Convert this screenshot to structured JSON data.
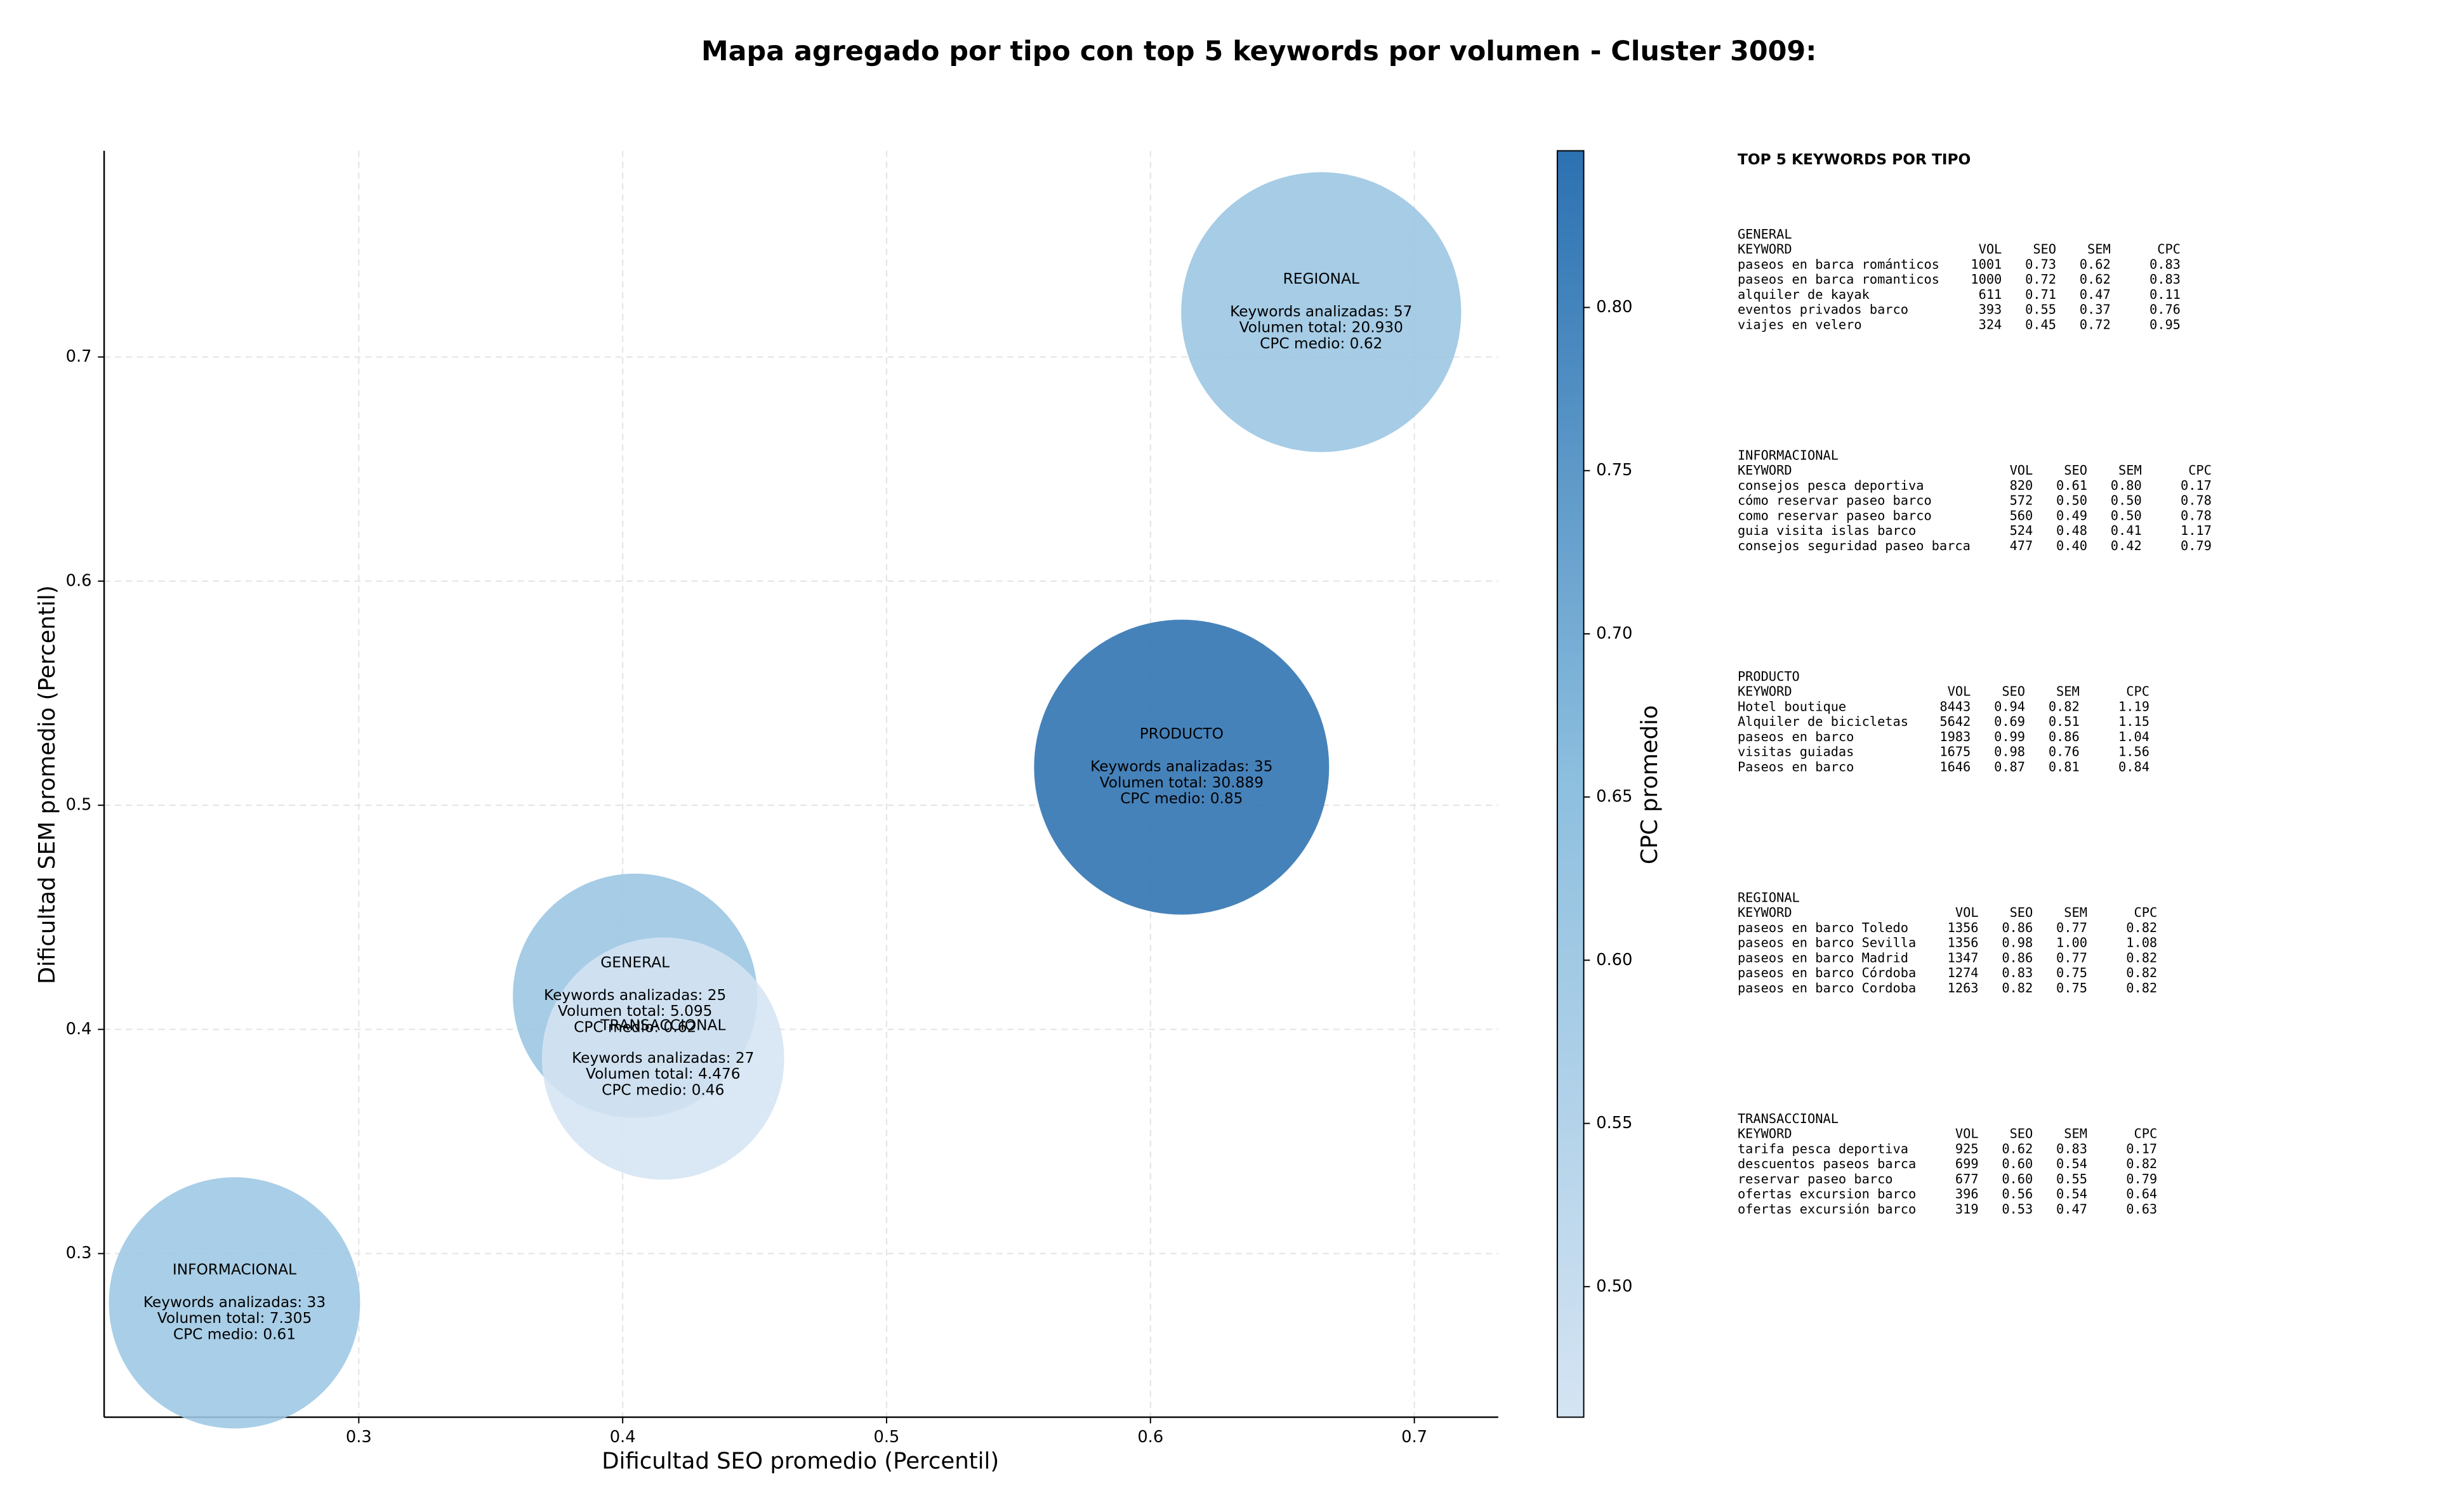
{
  "chart_data": {
    "type": "bubble",
    "title": "Mapa agregado por tipo con top 5 keywords por volumen - Cluster 3009:",
    "x_label": "Dificultad SEO promedio (Percentil)",
    "y_label": "Dificultad SEM promedio (Percentil)",
    "colorbar_label": "CPC promedio",
    "xlim": [
      0.2035,
      0.7318
    ],
    "ylim": [
      0.227,
      0.792
    ],
    "xticks": [
      0.3,
      0.4,
      0.5,
      0.6,
      0.7
    ],
    "yticks": [
      0.3,
      0.4,
      0.5,
      0.6,
      0.7
    ],
    "clim": [
      0.46,
      0.848
    ],
    "cticks": [
      {
        "value": 0.5,
        "label": "0.50"
      },
      {
        "value": 0.55,
        "label": "0.55"
      },
      {
        "value": 0.6,
        "label": "0.60"
      },
      {
        "value": 0.65,
        "label": "0.65"
      },
      {
        "value": 0.7,
        "label": "0.70"
      },
      {
        "value": 0.75,
        "label": "0.75"
      },
      {
        "value": 0.8,
        "label": "0.80"
      }
    ],
    "colormap": [
      "#d5e4f3",
      "#8dbfdf",
      "#2c71b1"
    ],
    "grid": true,
    "points": [
      {
        "name": "GENERAL",
        "x": 0.4047,
        "y": 0.415,
        "volume": 5095,
        "cpc": 0.62,
        "labels": [
          "Keywords analizadas: 25",
          "Volumen total: 5.095",
          "CPC medio: 0.62"
        ]
      },
      {
        "name": "INFORMACIONAL",
        "x": 0.2529,
        "y": 0.278,
        "volume": 7305,
        "cpc": 0.61,
        "labels": [
          "Keywords analizadas: 33",
          "Volumen total: 7.305",
          "CPC medio: 0.61"
        ]
      },
      {
        "name": "PRODUCTO",
        "x": 0.6118,
        "y": 0.517,
        "volume": 30889,
        "cpc": 0.85,
        "labels": [
          "Keywords analizadas: 35",
          "Volumen total: 30.889",
          "CPC medio: 0.85"
        ]
      },
      {
        "name": "REGIONAL",
        "x": 0.6647,
        "y": 0.72,
        "volume": 20930,
        "cpc": 0.62,
        "labels": [
          "Keywords analizadas: 57",
          "Volumen total: 20.930",
          "CPC medio: 0.62"
        ]
      },
      {
        "name": "TRANSACCIONAL",
        "x": 0.4153,
        "y": 0.387,
        "volume": 4476,
        "cpc": 0.46,
        "labels": [
          "Keywords analizadas: 27",
          "Volumen total: 4.476",
          "CPC medio: 0.46"
        ]
      }
    ]
  },
  "keyword_panel": {
    "title": "TOP 5 KEYWORDS POR TIPO",
    "columns": [
      "KEYWORD",
      "VOL",
      "SEO",
      "SEM",
      "CPC"
    ],
    "groups": [
      {
        "name": "GENERAL",
        "rows": [
          [
            "paseos en barca románticos",
            "1001",
            "0.73",
            "0.62",
            "0.83"
          ],
          [
            "paseos en barca romanticos",
            "1000",
            "0.72",
            "0.62",
            "0.83"
          ],
          [
            "alquiler de kayak",
            "611",
            "0.71",
            "0.47",
            "0.11"
          ],
          [
            "eventos privados barco",
            "393",
            "0.55",
            "0.37",
            "0.76"
          ],
          [
            "viajes en velero",
            "324",
            "0.45",
            "0.72",
            "0.95"
          ]
        ]
      },
      {
        "name": "INFORMACIONAL",
        "rows": [
          [
            "consejos pesca deportiva",
            "820",
            "0.61",
            "0.80",
            "0.17"
          ],
          [
            "cómo reservar paseo barco",
            "572",
            "0.50",
            "0.50",
            "0.78"
          ],
          [
            "como reservar paseo barco",
            "560",
            "0.49",
            "0.50",
            "0.78"
          ],
          [
            "guia visita islas barco",
            "524",
            "0.48",
            "0.41",
            "1.17"
          ],
          [
            "consejos seguridad paseo barca",
            "477",
            "0.40",
            "0.42",
            "0.79"
          ]
        ]
      },
      {
        "name": "PRODUCTO",
        "rows": [
          [
            "Hotel boutique",
            "8443",
            "0.94",
            "0.82",
            "1.19"
          ],
          [
            "Alquiler de bicicletas",
            "5642",
            "0.69",
            "0.51",
            "1.15"
          ],
          [
            "paseos en barco",
            "1983",
            "0.99",
            "0.86",
            "1.04"
          ],
          [
            "visitas guiadas",
            "1675",
            "0.98",
            "0.76",
            "1.56"
          ],
          [
            "Paseos en barco",
            "1646",
            "0.87",
            "0.81",
            "0.84"
          ]
        ]
      },
      {
        "name": "REGIONAL",
        "rows": [
          [
            "paseos en barco Toledo",
            "1356",
            "0.86",
            "0.77",
            "0.82"
          ],
          [
            "paseos en barco Sevilla",
            "1356",
            "0.98",
            "1.00",
            "1.08"
          ],
          [
            "paseos en barco Madrid",
            "1347",
            "0.86",
            "0.77",
            "0.82"
          ],
          [
            "paseos en barco Córdoba",
            "1274",
            "0.83",
            "0.75",
            "0.82"
          ],
          [
            "paseos en barco Cordoba",
            "1263",
            "0.82",
            "0.75",
            "0.82"
          ]
        ]
      },
      {
        "name": "TRANSACCIONAL",
        "rows": [
          [
            "tarifa pesca deportiva",
            "925",
            "0.62",
            "0.83",
            "0.17"
          ],
          [
            "descuentos paseos barca",
            "699",
            "0.60",
            "0.54",
            "0.82"
          ],
          [
            "reservar paseo barco",
            "677",
            "0.60",
            "0.55",
            "0.79"
          ],
          [
            "ofertas excursion barco",
            "396",
            "0.56",
            "0.54",
            "0.64"
          ],
          [
            "ofertas excursión barco",
            "319",
            "0.53",
            "0.47",
            "0.63"
          ]
        ]
      }
    ]
  }
}
